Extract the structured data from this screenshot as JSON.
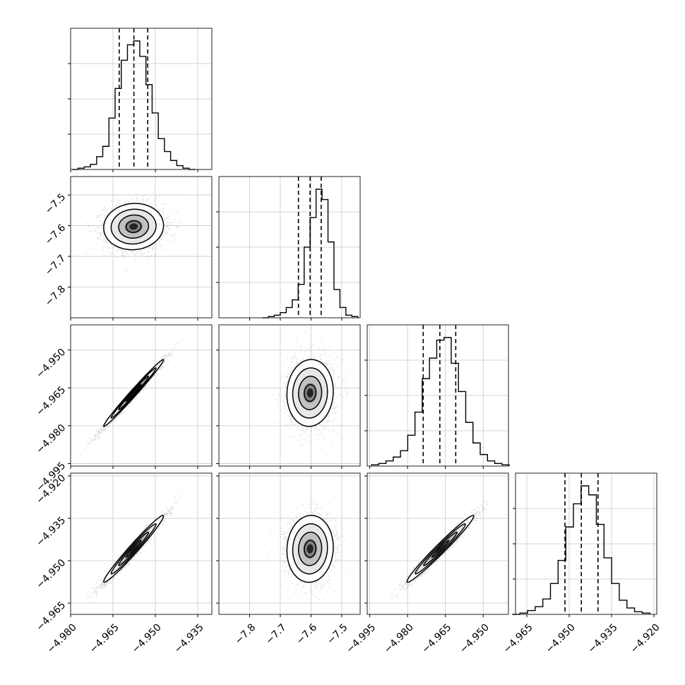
{
  "chart_data": {
    "type": "corner",
    "title": "",
    "parameters": [
      {
        "range": [
          -4.98,
          -4.93
        ],
        "ticks": [
          -4.98,
          -4.965,
          -4.95,
          -4.935
        ],
        "tick_labels": [
          "−4.980",
          "−4.965",
          "−4.950",
          "−4.935"
        ],
        "quantiles": [
          -4.9628,
          -4.9576,
          -4.9527
        ],
        "mean": -4.9577,
        "sd": 0.0052
      },
      {
        "range": [
          -7.9,
          -7.44
        ],
        "ticks": [
          -7.8,
          -7.7,
          -7.6,
          -7.5
        ],
        "tick_labels": [
          "−7.8",
          "−7.7",
          "−7.6",
          "−7.5"
        ],
        "quantiles": [
          -7.641,
          -7.603,
          -7.567
        ],
        "mean": -7.603,
        "sd": 0.037
      },
      {
        "range": [
          -4.996,
          -4.94
        ],
        "ticks": [
          -4.995,
          -4.98,
          -4.965,
          -4.95
        ],
        "tick_labels": [
          "−4.995",
          "−4.980",
          "−4.965",
          "−4.950"
        ],
        "quantiles": [
          -4.9738,
          -4.9672,
          -4.9609
        ],
        "mean": -4.967,
        "sd": 0.0065
      },
      {
        "range": [
          -4.969,
          -4.919
        ],
        "ticks": [
          -4.965,
          -4.95,
          -4.935,
          -4.92
        ],
        "tick_labels": [
          "−4.965",
          "−4.950",
          "−4.935",
          "−4.920"
        ],
        "quantiles": [
          -4.9515,
          -4.9457,
          -4.9398
        ],
        "mean": -4.9458,
        "sd": 0.0058
      }
    ],
    "histograms": [
      [
        0,
        1,
        2,
        4,
        10,
        18,
        40,
        63,
        85,
        97,
        100,
        88,
        66,
        44,
        24,
        14,
        7,
        3,
        1,
        0
      ],
      [
        0,
        1,
        2,
        4,
        8,
        14,
        26,
        55,
        78,
        100,
        92,
        59,
        22,
        8,
        2,
        1
      ],
      [
        1,
        2,
        4,
        7,
        12,
        24,
        42,
        68,
        84,
        98,
        100,
        80,
        58,
        34,
        18,
        9,
        4,
        2,
        1
      ],
      [
        0,
        1,
        3,
        6,
        12,
        24,
        42,
        68,
        86,
        100,
        93,
        70,
        44,
        24,
        11,
        5,
        2,
        1
      ]
    ],
    "correlations": [
      {
        "pair": [
          0,
          1
        ],
        "rho": 0.05
      },
      {
        "pair": [
          0,
          2
        ],
        "rho": 0.99
      },
      {
        "pair": [
          1,
          2
        ],
        "rho": 0.05
      },
      {
        "pair": [
          0,
          3
        ],
        "rho": 0.98
      },
      {
        "pair": [
          1,
          3
        ],
        "rho": 0.05
      },
      {
        "pair": [
          2,
          3
        ],
        "rho": 0.98
      }
    ],
    "contour_levels_sigma": [
      0.5,
      1,
      1.5,
      2
    ],
    "grid": true,
    "legend": "none"
  }
}
